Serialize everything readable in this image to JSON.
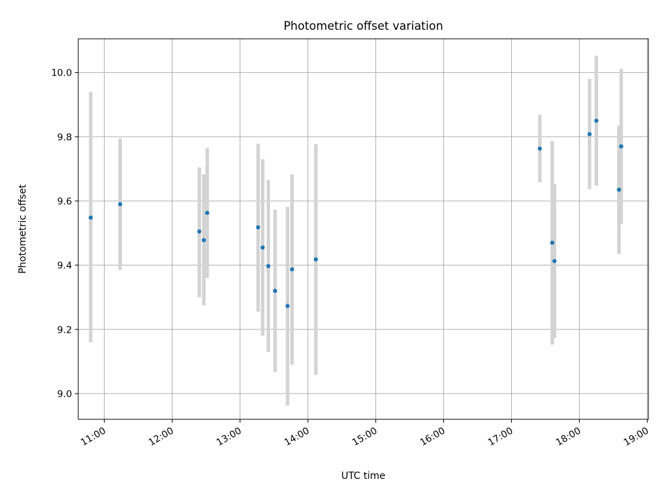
{
  "chart_data": {
    "type": "scatter",
    "title": "Photometric offset variation",
    "xlabel": "UTC time",
    "ylabel": "Photometric offset",
    "grid": true,
    "xlim": [
      "10:37",
      "19:01"
    ],
    "ylim": [
      8.92,
      10.105
    ],
    "x_ticks": [
      "11:00",
      "12:00",
      "13:00",
      "14:00",
      "15:00",
      "16:00",
      "17:00",
      "18:00",
      "19:00"
    ],
    "y_ticks": [
      "9.0",
      "9.2",
      "9.4",
      "9.6",
      "9.8",
      "10.0"
    ],
    "marker_color": "#1f77b4",
    "errorbar_color": "#d3d3d3",
    "points": [
      {
        "x": "10:48",
        "y": 9.548,
        "y_low": 9.16,
        "y_high": 9.94
      },
      {
        "x": "11:14",
        "y": 9.59,
        "y_low": 9.385,
        "y_high": 9.795
      },
      {
        "x": "12:24",
        "y": 9.505,
        "y_low": 9.3,
        "y_high": 9.705
      },
      {
        "x": "12:28",
        "y": 9.478,
        "y_low": 9.275,
        "y_high": 9.683
      },
      {
        "x": "12:31",
        "y": 9.563,
        "y_low": 9.36,
        "y_high": 9.765
      },
      {
        "x": "13:16",
        "y": 9.518,
        "y_low": 9.255,
        "y_high": 9.778
      },
      {
        "x": "13:20",
        "y": 9.455,
        "y_low": 9.18,
        "y_high": 9.73
      },
      {
        "x": "13:25",
        "y": 9.397,
        "y_low": 9.13,
        "y_high": 9.665
      },
      {
        "x": "13:31",
        "y": 9.32,
        "y_low": 9.067,
        "y_high": 9.573
      },
      {
        "x": "13:42",
        "y": 9.273,
        "y_low": 8.963,
        "y_high": 9.582
      },
      {
        "x": "13:46",
        "y": 9.387,
        "y_low": 9.09,
        "y_high": 9.683
      },
      {
        "x": "14:07",
        "y": 9.418,
        "y_low": 9.058,
        "y_high": 9.777
      },
      {
        "x": "17:25",
        "y": 9.763,
        "y_low": 9.658,
        "y_high": 9.868
      },
      {
        "x": "17:36",
        "y": 9.47,
        "y_low": 9.152,
        "y_high": 9.787
      },
      {
        "x": "17:38",
        "y": 9.413,
        "y_low": 9.173,
        "y_high": 9.653
      },
      {
        "x": "18:09",
        "y": 9.808,
        "y_low": 9.637,
        "y_high": 9.98
      },
      {
        "x": "18:15",
        "y": 9.85,
        "y_low": 9.648,
        "y_high": 10.052
      },
      {
        "x": "18:35",
        "y": 9.635,
        "y_low": 9.435,
        "y_high": 9.835
      },
      {
        "x": "18:37",
        "y": 9.77,
        "y_low": 9.528,
        "y_high": 10.012
      }
    ]
  }
}
